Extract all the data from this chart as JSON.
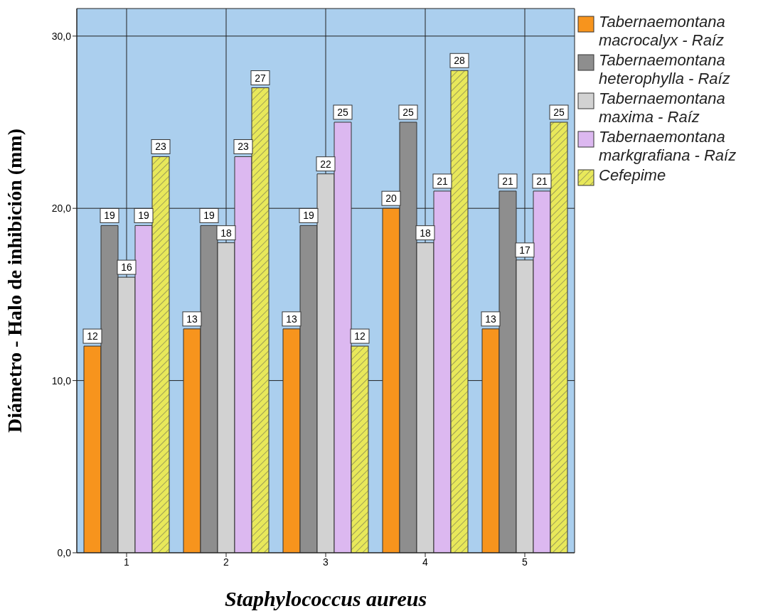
{
  "chart_data": {
    "type": "bar",
    "xlabel": "Staphylococcus aureus",
    "ylabel": "Diámetro - Halo de inhibición (mm)",
    "categories": [
      "1",
      "2",
      "3",
      "4",
      "5"
    ],
    "series": [
      {
        "name": "Tabernaemontana macrocalyx - Raíz",
        "color": "#f7941d",
        "values": [
          12,
          13,
          13,
          20,
          13
        ]
      },
      {
        "name": "Tabernaemontana heterophylla - Raíz",
        "color": "#8e8e8e",
        "values": [
          19,
          19,
          19,
          25,
          21
        ]
      },
      {
        "name": "Tabernaemontana maxima - Raíz",
        "color": "#d2d2d2",
        "values": [
          16,
          18,
          22,
          18,
          17
        ]
      },
      {
        "name": "Tabernaemontana markgrafiana - Raíz",
        "color": "#dcb8f0",
        "values": [
          19,
          23,
          25,
          21,
          21
        ]
      },
      {
        "name": "Cefepime",
        "color": "#e8e85a",
        "values": [
          23,
          27,
          12,
          28,
          25
        ]
      }
    ],
    "ylim": [
      0,
      31.6
    ],
    "yticks": [
      {
        "value": 0,
        "label": "0,0"
      },
      {
        "value": 10,
        "label": "10,0"
      },
      {
        "value": 20,
        "label": "20,0"
      },
      {
        "value": 30,
        "label": "30,0"
      }
    ],
    "grid": true,
    "legend": "top right",
    "data_labels": true
  }
}
